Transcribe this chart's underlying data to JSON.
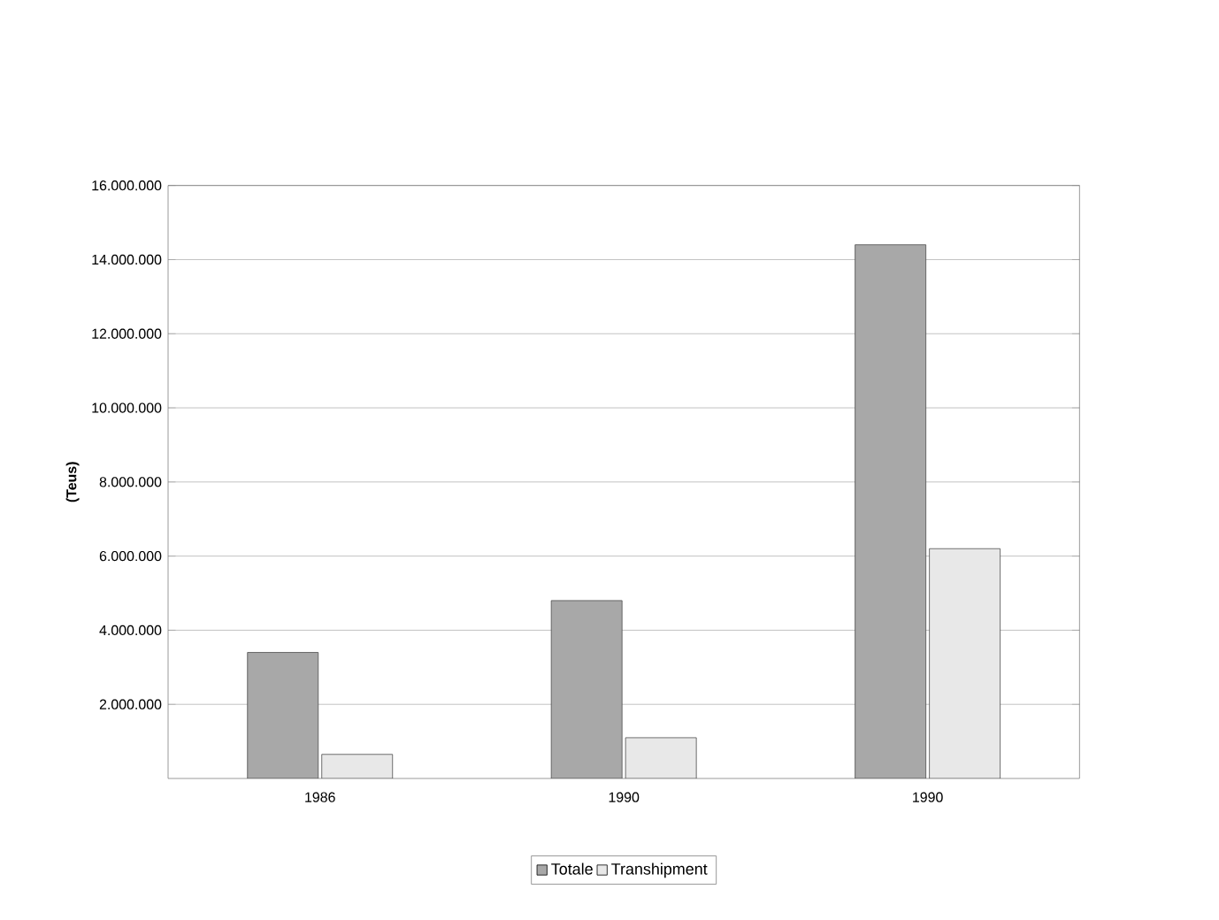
{
  "chart_data": {
    "type": "bar",
    "ylabel": "(Teus)",
    "categories": [
      "1986",
      "1990",
      "1990"
    ],
    "series": [
      {
        "name": "Totale",
        "color": "#a8a8a8",
        "values": [
          3400000,
          4800000,
          14400000
        ]
      },
      {
        "name": "Transhipment",
        "color": "#e8e8e8",
        "values": [
          650000,
          1100000,
          6200000
        ]
      }
    ],
    "ylim": [
      0,
      16000000
    ],
    "yticks": [
      {
        "value": 2000000,
        "label": "2.000.000"
      },
      {
        "value": 4000000,
        "label": "4.000.000"
      },
      {
        "value": 6000000,
        "label": "6.000.000"
      },
      {
        "value": 8000000,
        "label": "8.000.000"
      },
      {
        "value": 10000000,
        "label": "10.000.000"
      },
      {
        "value": 12000000,
        "label": "12.000.000"
      },
      {
        "value": 14000000,
        "label": "14.000.000"
      },
      {
        "value": 16000000,
        "label": "16.000.000"
      }
    ],
    "grid": "y",
    "legend": "bottom"
  }
}
